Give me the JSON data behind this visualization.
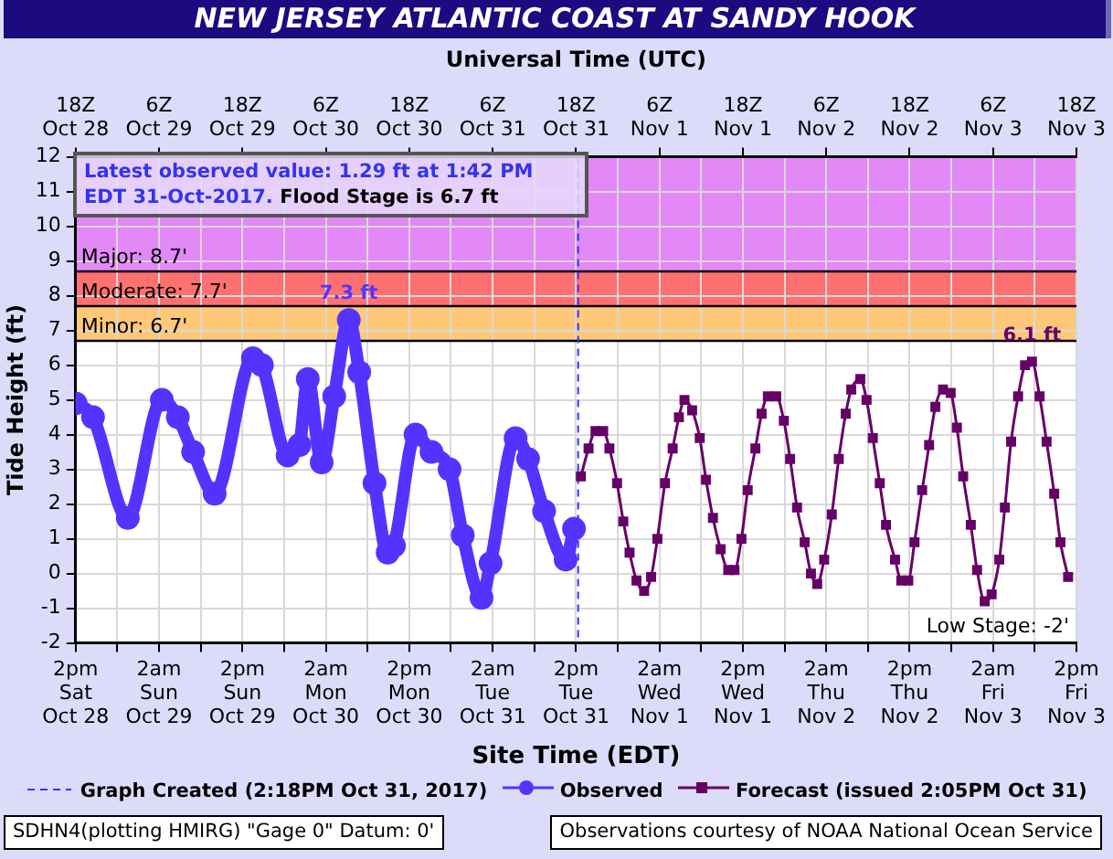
{
  "chart_data": {
    "type": "line",
    "title": "NEW JERSEY ATLANTIC COAST AT SANDY HOOK",
    "x2label": "Universal Time (UTC)",
    "xlabel": "Site Time (EDT)",
    "ylabel": "Tide Height (ft)",
    "xlim": [
      "2017-10-28T14:00",
      "2017-11-03T14:00"
    ],
    "x2lim": [
      "2017-10-28T18:00",
      "2017-11-03T18:00"
    ],
    "ylim": [
      -2,
      12
    ],
    "yticks": [
      -2,
      -1,
      0,
      1,
      2,
      3,
      4,
      5,
      6,
      7,
      8,
      9,
      10,
      11,
      12
    ],
    "xticks": [
      {
        "value": "2017-10-28T14:00",
        "label": "2pm\nSat\nOct 28"
      },
      {
        "value": "2017-10-28T20:00",
        "label": null
      },
      {
        "value": "2017-10-29T02:00",
        "label": "2am\nSun\nOct 29"
      },
      {
        "value": "2017-10-29T08:00",
        "label": null
      },
      {
        "value": "2017-10-29T14:00",
        "label": "2pm\nSun\nOct 29"
      },
      {
        "value": "2017-10-29T20:00",
        "label": null
      },
      {
        "value": "2017-10-30T02:00",
        "label": "2am\nMon\nOct 30"
      },
      {
        "value": "2017-10-30T08:00",
        "label": null
      },
      {
        "value": "2017-10-30T14:00",
        "label": "2pm\nMon\nOct 30"
      },
      {
        "value": "2017-10-30T20:00",
        "label": null
      },
      {
        "value": "2017-10-31T02:00",
        "label": "2am\nTue\nOct 31"
      },
      {
        "value": "2017-10-31T08:00",
        "label": null
      },
      {
        "value": "2017-10-31T14:00",
        "label": "2pm\nTue\nOct 31"
      },
      {
        "value": "2017-10-31T20:00",
        "label": null
      },
      {
        "value": "2017-11-01T02:00",
        "label": "2am\nWed\nNov 1"
      },
      {
        "value": "2017-11-01T08:00",
        "label": null
      },
      {
        "value": "2017-11-01T14:00",
        "label": "2pm\nWed\nNov 1"
      },
      {
        "value": "2017-11-01T20:00",
        "label": null
      },
      {
        "value": "2017-11-02T02:00",
        "label": "2am\nThu\nNov 2"
      },
      {
        "value": "2017-11-02T08:00",
        "label": null
      },
      {
        "value": "2017-11-02T14:00",
        "label": "2pm\nThu\nNov 2"
      },
      {
        "value": "2017-11-02T20:00",
        "label": null
      },
      {
        "value": "2017-11-03T02:00",
        "label": "2am\nFri\nNov 3"
      },
      {
        "value": "2017-11-03T08:00",
        "label": null
      },
      {
        "value": "2017-11-03T14:00",
        "label": "2pm\nFri\nNov 3"
      }
    ],
    "x2ticks": [
      {
        "value": "2017-10-28T18:00",
        "label": "18Z\nOct 28"
      },
      {
        "value": "2017-10-29T06:00",
        "label": "6Z\nOct 29"
      },
      {
        "value": "2017-10-29T18:00",
        "label": "18Z\nOct 29"
      },
      {
        "value": "2017-10-30T06:00",
        "label": "6Z\nOct 30"
      },
      {
        "value": "2017-10-30T18:00",
        "label": "18Z\nOct 30"
      },
      {
        "value": "2017-10-31T06:00",
        "label": "6Z\nOct 31"
      },
      {
        "value": "2017-10-31T18:00",
        "label": "18Z\nOct 31"
      },
      {
        "value": "2017-11-01T06:00",
        "label": "6Z\nNov 1"
      },
      {
        "value": "2017-11-01T18:00",
        "label": "18Z\nNov 1"
      },
      {
        "value": "2017-11-02T06:00",
        "label": "6Z\nNov 2"
      },
      {
        "value": "2017-11-02T18:00",
        "label": "18Z\nNov 2"
      },
      {
        "value": "2017-11-03T06:00",
        "label": "6Z\nNov 3"
      },
      {
        "value": "2017-11-03T18:00",
        "label": "18Z\nNov 3"
      }
    ],
    "grid": true,
    "legend": "bottom",
    "series": [
      {
        "name": "Observed",
        "color": "#5533ff",
        "marker": "circle",
        "x": [
          "2017-10-28T14:00",
          "2017-10-28T16:30",
          "2017-10-28T21:30",
          "2017-10-29T02:24",
          "2017-10-29T04:42",
          "2017-10-29T06:54",
          "2017-10-29T10:00",
          "2017-10-29T15:30",
          "2017-10-29T16:48",
          "2017-10-29T20:30",
          "2017-10-29T22:12",
          "2017-10-29T23:24",
          "2017-10-30T01:24",
          "2017-10-30T03:12",
          "2017-10-30T05:18",
          "2017-10-30T06:48",
          "2017-10-30T09:00",
          "2017-10-30T10:54",
          "2017-10-30T11:48",
          "2017-10-30T14:54",
          "2017-10-30T17:12",
          "2017-10-30T19:48",
          "2017-10-30T21:42",
          "2017-10-31T00:24",
          "2017-10-31T01:42",
          "2017-10-31T05:18",
          "2017-10-31T07:06",
          "2017-10-31T09:24",
          "2017-10-31T12:30",
          "2017-10-31T13:42"
        ],
        "values": [
          4.9,
          4.5,
          1.6,
          5.0,
          4.5,
          3.5,
          2.3,
          6.2,
          6.0,
          3.4,
          3.7,
          5.6,
          3.2,
          5.1,
          7.3,
          5.8,
          2.6,
          0.6,
          0.8,
          4.0,
          3.5,
          3.0,
          1.1,
          -0.7,
          0.3,
          3.9,
          3.3,
          1.8,
          0.4,
          1.29
        ]
      },
      {
        "name": "Forecast (issued 2:05PM Oct 31)",
        "color": "#660066",
        "marker": "square",
        "x": [
          "2017-10-31T14:42",
          "2017-10-31T15:48",
          "2017-10-31T16:48",
          "2017-10-31T17:54",
          "2017-10-31T18:48",
          "2017-10-31T19:54",
          "2017-10-31T20:48",
          "2017-10-31T21:42",
          "2017-10-31T22:42",
          "2017-10-31T23:48",
          "2017-11-01T00:48",
          "2017-11-01T01:42",
          "2017-11-01T02:48",
          "2017-11-01T03:54",
          "2017-11-01T04:48",
          "2017-11-01T05:36",
          "2017-11-01T06:42",
          "2017-11-01T07:48",
          "2017-11-01T08:42",
          "2017-11-01T09:42",
          "2017-11-01T10:48",
          "2017-11-01T11:54",
          "2017-11-01T12:48",
          "2017-11-01T13:48",
          "2017-11-01T14:42",
          "2017-11-01T15:48",
          "2017-11-01T16:42",
          "2017-11-01T17:36",
          "2017-11-01T18:48",
          "2017-11-01T19:54",
          "2017-11-01T20:48",
          "2017-11-01T21:48",
          "2017-11-01T22:54",
          "2017-11-01T23:48",
          "2017-11-02T00:42",
          "2017-11-02T01:42",
          "2017-11-02T02:48",
          "2017-11-02T03:48",
          "2017-11-02T04:48",
          "2017-11-02T05:36",
          "2017-11-02T06:54",
          "2017-11-02T07:48",
          "2017-11-02T08:42",
          "2017-11-02T09:42",
          "2017-11-02T10:36",
          "2017-11-02T11:54",
          "2017-11-02T12:48",
          "2017-11-02T13:48",
          "2017-11-02T14:42",
          "2017-11-02T15:48",
          "2017-11-02T16:48",
          "2017-11-02T17:42",
          "2017-11-02T18:48",
          "2017-11-02T19:54",
          "2017-11-02T20:48",
          "2017-11-02T21:42",
          "2017-11-02T22:48",
          "2017-11-02T23:42",
          "2017-11-03T00:48",
          "2017-11-03T01:48",
          "2017-11-03T02:54",
          "2017-11-03T03:42",
          "2017-11-03T04:36",
          "2017-11-03T05:36",
          "2017-11-03T06:36",
          "2017-11-03T07:36",
          "2017-11-03T08:42",
          "2017-11-03T09:42",
          "2017-11-03T10:48",
          "2017-11-03T11:42",
          "2017-11-03T12:48"
        ],
        "values": [
          2.8,
          3.6,
          4.1,
          4.1,
          3.6,
          2.6,
          1.5,
          0.6,
          -0.2,
          -0.5,
          -0.1,
          1.0,
          2.6,
          3.6,
          4.5,
          5.0,
          4.7,
          3.9,
          2.7,
          1.6,
          0.7,
          0.1,
          0.1,
          1.0,
          2.4,
          3.6,
          4.6,
          5.1,
          5.1,
          4.4,
          3.3,
          1.9,
          0.9,
          0.0,
          -0.3,
          0.4,
          1.7,
          3.3,
          4.6,
          5.3,
          5.6,
          5.0,
          3.9,
          2.6,
          1.4,
          0.4,
          -0.2,
          -0.2,
          0.9,
          2.4,
          3.7,
          4.8,
          5.3,
          5.2,
          4.2,
          2.8,
          1.4,
          0.1,
          -0.8,
          -0.6,
          0.4,
          1.9,
          3.8,
          5.1,
          6.0,
          6.1,
          5.1,
          3.8,
          2.3,
          0.9,
          -0.1
        ]
      }
    ],
    "bands": [
      {
        "axis": "y",
        "from": 6.7,
        "to": 7.7,
        "label": "Minor: 6.7'",
        "color": "#ffc878"
      },
      {
        "axis": "y",
        "from": 7.7,
        "to": 8.7,
        "label": "Moderate: 7.7'",
        "color": "#ff7070"
      },
      {
        "axis": "y",
        "from": 8.7,
        "to": 12,
        "label": "Major: 8.7'",
        "color": "#e388f7"
      }
    ],
    "ref_lines": [
      {
        "axis": "x",
        "value": "2017-10-31T14:18",
        "label": "Graph Created (2:18PM Oct 31, 2017)",
        "color": "#3333ff",
        "line_style": "dashed"
      }
    ],
    "annotations": [
      "Latest observed value: 1.29 ft at 1:42 PM EDT 31-Oct-2017.",
      "Flood Stage is 6.7 ft",
      "SDHN4(plotting HMIRG) \"Gage 0\" Datum: 0'",
      "Observations courtesy of NOAA National Ocean Service",
      "Low Stage: -2'",
      {
        "text": "7.3 ft",
        "x": "2017-10-30T05:18",
        "y": 7.3
      },
      {
        "text": "6.1 ft",
        "x": "2017-11-03T07:36",
        "y": 6.1
      }
    ]
  }
}
